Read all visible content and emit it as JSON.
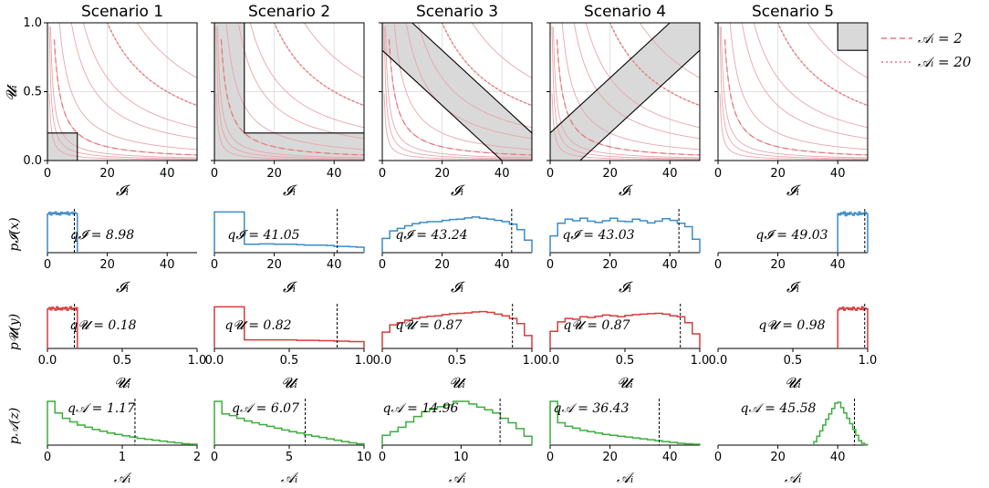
{
  "chart_data": {
    "type": "multi-panel",
    "scenarios": [
      "Scenario 1",
      "Scenario 2",
      "Scenario 3",
      "Scenario 4",
      "Scenario 5"
    ],
    "legend": [
      {
        "label": "𝒜ᵢ = 2",
        "A": 2,
        "style": "dashed",
        "color": "#e07a7a"
      },
      {
        "label": "𝒜ᵢ = 20",
        "A": 20,
        "style": "dotted",
        "color": "#e07a7a"
      }
    ],
    "colors": {
      "region_fill": "#d9d9d9",
      "iso": "#e8a6ab",
      "I": "#3a8cc8",
      "U": "#d63c3c",
      "A": "#3cae3c"
    },
    "row1": {
      "xlabel": "𝓘ᵢ",
      "ylabel": "𝓤ᵢ",
      "xlim": [
        0,
        50
      ],
      "ylim": [
        0,
        1
      ],
      "xticks": [
        {
          "v": 0,
          "l": "0"
        },
        {
          "v": 20,
          "l": "20"
        },
        {
          "v": 40,
          "l": "40"
        }
      ],
      "yticks": [
        {
          "v": 0,
          "l": "0.0"
        },
        {
          "v": 0.5,
          "l": "0.5"
        },
        {
          "v": 1,
          "l": "1.0"
        }
      ],
      "iso_levels": [
        0.3,
        0.6,
        1,
        2,
        4,
        8,
        12,
        20,
        30
      ],
      "regions": [
        [
          [
            0,
            0
          ],
          [
            10,
            0
          ],
          [
            10,
            0.2
          ],
          [
            0,
            0.2
          ]
        ],
        [
          [
            0,
            0
          ],
          [
            50,
            0
          ],
          [
            50,
            0.2
          ],
          [
            10,
            0.2
          ],
          [
            10,
            1
          ],
          [
            0,
            1
          ]
        ],
        [
          [
            0,
            1
          ],
          [
            10,
            1
          ],
          [
            50,
            0.2
          ],
          [
            50,
            0
          ],
          [
            40,
            0
          ],
          [
            0,
            0.8
          ]
        ],
        [
          [
            0,
            0
          ],
          [
            10,
            0
          ],
          [
            50,
            0.8
          ],
          [
            50,
            1
          ],
          [
            40,
            1
          ],
          [
            0,
            0.2
          ]
        ],
        [
          [
            40,
            0.8
          ],
          [
            50,
            0.8
          ],
          [
            50,
            1
          ],
          [
            40,
            1
          ]
        ]
      ]
    },
    "row2": {
      "xlabel": "𝓘ᵢ",
      "ylabel": "p𝓘(x)",
      "xlim": [
        0,
        50
      ],
      "xticks": [
        {
          "v": 0,
          "l": "0"
        },
        {
          "v": 20,
          "l": "20"
        },
        {
          "v": 40,
          "l": "40"
        }
      ],
      "q_labels": [
        "q𝓘 = 8.98",
        "q𝓘 = 41.05",
        "q𝓘 = 43.24",
        "q𝓘 = 43.03",
        "q𝓘 = 49.03"
      ],
      "q_values": [
        8.98,
        41.05,
        43.24,
        43.03,
        49.03
      ],
      "hist": [
        {
          "x0": 0,
          "step": 0.5,
          "heights": [
            0.92,
            0.96,
            0.9,
            0.95,
            0.93,
            0.97,
            0.91,
            0.94,
            0.9,
            0.96,
            0.93,
            0.95,
            0.92,
            0.97,
            0.9,
            0.94,
            0.96,
            0.92,
            0.95,
            0.93
          ]
        },
        {
          "x0": 0,
          "step": 2.5,
          "heights": [
            0.97,
            0.97,
            0.97,
            0.97,
            0.2,
            0.2,
            0.21,
            0.21,
            0.2,
            0.2,
            0.2,
            0.19,
            0.18,
            0.18,
            0.18,
            0.17,
            0.15,
            0.15,
            0.14,
            0.13
          ]
        },
        {
          "x0": 0,
          "step": 2.5,
          "heights": [
            0.34,
            0.52,
            0.58,
            0.64,
            0.69,
            0.72,
            0.74,
            0.74,
            0.77,
            0.79,
            0.8,
            0.83,
            0.85,
            0.82,
            0.8,
            0.77,
            0.74,
            0.68,
            0.55,
            0.3
          ]
        },
        {
          "x0": 0,
          "step": 2.5,
          "heights": [
            0.4,
            0.7,
            0.8,
            0.76,
            0.82,
            0.75,
            0.72,
            0.76,
            0.82,
            0.75,
            0.74,
            0.8,
            0.76,
            0.71,
            0.75,
            0.81,
            0.77,
            0.7,
            0.62,
            0.32
          ]
        },
        {
          "x0": 40,
          "step": 0.5,
          "heights": [
            0.93,
            0.9,
            0.95,
            0.92,
            0.97,
            0.88,
            0.94,
            0.91,
            0.96,
            0.92,
            0.89,
            0.95,
            0.93,
            0.9,
            0.97,
            0.91,
            0.94,
            0.92,
            0.96,
            0.93
          ]
        }
      ]
    },
    "row3": {
      "xlabel": "𝓤ᵢ",
      "ylabel": "p𝓤(y)",
      "xlim": [
        0,
        1
      ],
      "xticks": [
        {
          "v": 0,
          "l": "0.0"
        },
        {
          "v": 0.5,
          "l": "0.5"
        },
        {
          "v": 1,
          "l": "1.0"
        }
      ],
      "q_labels": [
        "q𝓤 = 0.18",
        "q𝓤 = 0.82",
        "q𝓤 = 0.87",
        "q𝓤 = 0.87",
        "q𝓤 = 0.98"
      ],
      "q_values": [
        0.18,
        0.82,
        0.87,
        0.87,
        0.98
      ],
      "hist": [
        {
          "x0": 0,
          "step": 0.01,
          "heights": [
            0.92,
            0.95,
            0.9,
            0.96,
            0.93,
            0.89,
            0.97,
            0.91,
            0.94,
            0.9,
            0.95,
            0.92,
            0.96,
            0.89,
            0.93,
            0.97,
            0.91,
            0.94,
            0.9,
            0.95
          ]
        },
        {
          "x0": 0,
          "step": 0.05,
          "heights": [
            0.97,
            0.97,
            0.97,
            0.97,
            0.2,
            0.2,
            0.2,
            0.2,
            0.2,
            0.2,
            0.2,
            0.19,
            0.19,
            0.19,
            0.18,
            0.18,
            0.17,
            0.17,
            0.16,
            0.16
          ]
        },
        {
          "x0": 0,
          "step": 0.05,
          "heights": [
            0.38,
            0.55,
            0.6,
            0.66,
            0.7,
            0.73,
            0.75,
            0.76,
            0.79,
            0.81,
            0.82,
            0.83,
            0.85,
            0.86,
            0.84,
            0.8,
            0.76,
            0.7,
            0.58,
            0.3
          ]
        },
        {
          "x0": 0,
          "step": 0.05,
          "heights": [
            0.4,
            0.62,
            0.7,
            0.68,
            0.74,
            0.72,
            0.75,
            0.78,
            0.76,
            0.74,
            0.77,
            0.79,
            0.8,
            0.81,
            0.82,
            0.8,
            0.76,
            0.74,
            0.6,
            0.34
          ]
        },
        {
          "x0": 0.8,
          "step": 0.01,
          "heights": [
            0.9,
            0.94,
            0.92,
            0.96,
            0.89,
            0.93,
            0.95,
            0.91,
            0.94,
            0.9,
            0.96,
            0.92,
            0.89,
            0.95,
            0.93,
            0.91,
            0.97,
            0.9,
            0.94,
            0.92
          ]
        }
      ]
    },
    "row4": {
      "xlabel": "𝒜ᵢ",
      "ylabel": "p𝒜(z)",
      "q_labels": [
        "q𝒜 = 1.17",
        "q𝒜 = 6.07",
        "q𝒜 = 14.96",
        "q𝒜 = 36.43",
        "q𝒜 = 45.58"
      ],
      "q_values": [
        1.17,
        6.07,
        14.96,
        36.43,
        45.58
      ],
      "panels": [
        {
          "xlim": [
            0,
            2
          ],
          "xticks": [
            {
              "v": 0,
              "l": "0"
            },
            {
              "v": 1,
              "l": "1"
            },
            {
              "v": 2,
              "l": "2"
            }
          ],
          "x0": 0,
          "step": 0.1,
          "heights": [
            0.98,
            0.72,
            0.6,
            0.52,
            0.45,
            0.4,
            0.35,
            0.31,
            0.27,
            0.24,
            0.21,
            0.18,
            0.15,
            0.13,
            0.11,
            0.09,
            0.07,
            0.05,
            0.03,
            0.02
          ]
        },
        {
          "xlim": [
            0,
            10
          ],
          "xticks": [
            {
              "v": 0,
              "l": "0"
            },
            {
              "v": 5,
              "l": "5"
            },
            {
              "v": 10,
              "l": "10"
            }
          ],
          "x0": 0,
          "step": 0.5,
          "heights": [
            0.98,
            0.7,
            0.66,
            0.6,
            0.54,
            0.5,
            0.46,
            0.42,
            0.38,
            0.34,
            0.3,
            0.27,
            0.23,
            0.2,
            0.17,
            0.14,
            0.11,
            0.08,
            0.05,
            0.03
          ]
        },
        {
          "xlim": [
            0,
            19
          ],
          "xticks": [
            {
              "v": 0,
              "l": "0"
            },
            {
              "v": 10,
              "l": "10"
            }
          ],
          "x0": 0,
          "step": 1,
          "heights": [
            0.22,
            0.3,
            0.4,
            0.52,
            0.64,
            0.75,
            0.82,
            0.86,
            0.9,
            0.98,
            0.98,
            0.92,
            0.85,
            0.79,
            0.72,
            0.6,
            0.5,
            0.37,
            0.2
          ]
        },
        {
          "xlim": [
            0,
            50
          ],
          "xticks": [
            {
              "v": 0,
              "l": "0"
            },
            {
              "v": 20,
              "l": "20"
            },
            {
              "v": 40,
              "l": "40"
            }
          ],
          "x0": 0,
          "step": 2.5,
          "heights": [
            0.98,
            0.5,
            0.42,
            0.38,
            0.33,
            0.3,
            0.27,
            0.24,
            0.22,
            0.2,
            0.18,
            0.16,
            0.14,
            0.12,
            0.1,
            0.08,
            0.06,
            0.04,
            0.03,
            0.02
          ]
        },
        {
          "xlim": [
            0,
            50
          ],
          "xticks": [
            {
              "v": 0,
              "l": "0"
            },
            {
              "v": 20,
              "l": "20"
            },
            {
              "v": 40,
              "l": "40"
            }
          ],
          "x0": 32,
          "step": 1,
          "heights": [
            0.08,
            0.2,
            0.32,
            0.45,
            0.58,
            0.7,
            0.82,
            0.94,
            0.96,
            0.84,
            0.72,
            0.6,
            0.48,
            0.35,
            0.22,
            0.1,
            0.04,
            0.01
          ]
        }
      ]
    }
  }
}
